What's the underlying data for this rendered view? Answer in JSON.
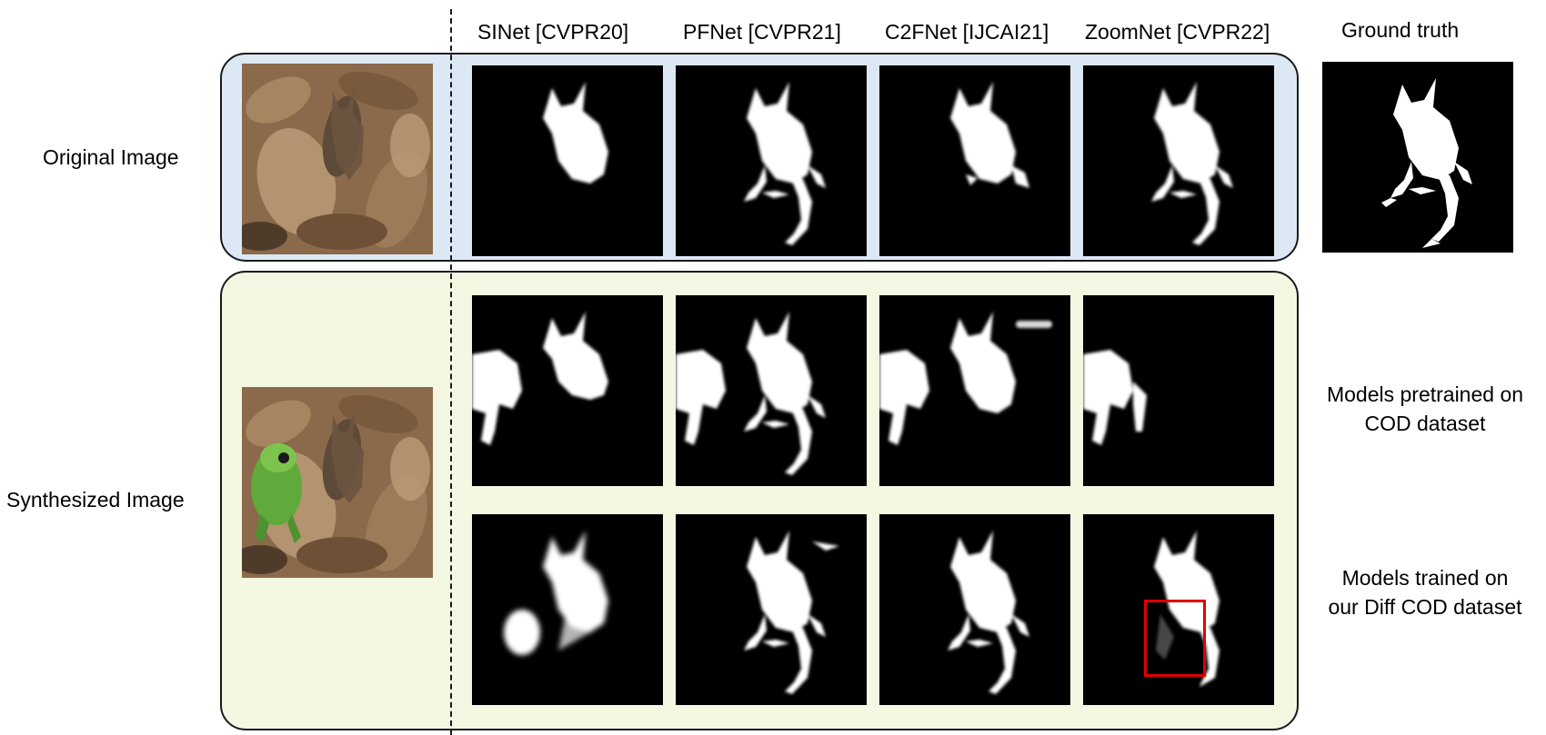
{
  "columns": {
    "sinet": "SINet [CVPR20]",
    "pfnet": "PFNet [CVPR21]",
    "c2fnet": "C2FNet [IJCAI21]",
    "zoomnet": "ZoomNet [CVPR22]",
    "ground_truth": "Ground truth"
  },
  "rows": {
    "original": "Original Image",
    "synthesized": "Synthesized Image",
    "pretrained_line1": "Models pretrained on",
    "pretrained_line2": "COD dataset",
    "trained_line1": "Models trained on",
    "trained_line2": "our Diff COD dataset"
  },
  "colors": {
    "original_panel": "#dde8f5",
    "synth_panel": "#f4f7e1",
    "highlight_box": "#e00000",
    "mask_bg": "#000000",
    "mask_fg": "#ffffff"
  }
}
